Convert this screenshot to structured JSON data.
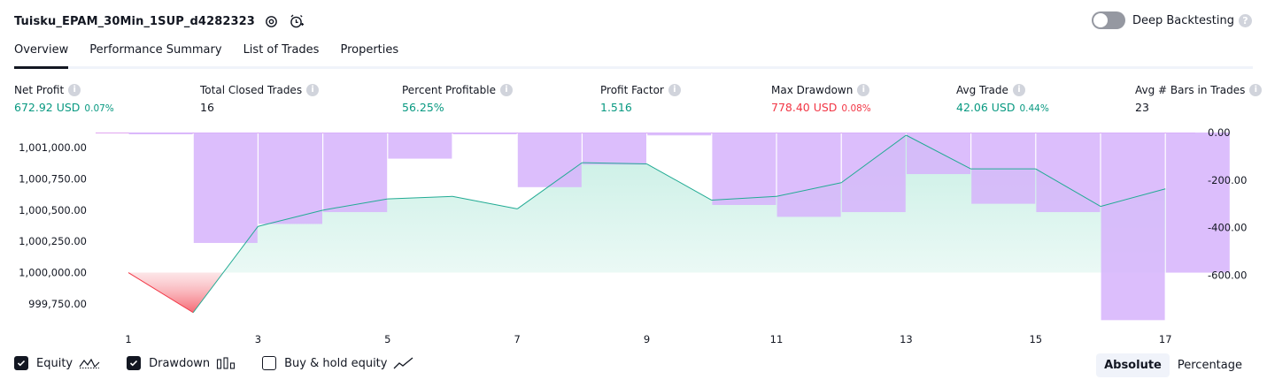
{
  "header": {
    "title": "Tuisku_EPAM_30Min_1SUP_d4282323",
    "deep_backtesting_label": "Deep Backtesting"
  },
  "tabs": [
    "Overview",
    "Performance Summary",
    "List of Trades",
    "Properties"
  ],
  "stats": {
    "net_profit": {
      "label": "Net Profit",
      "value": "672.92 USD",
      "pct": "0.07%"
    },
    "total_closed_trades": {
      "label": "Total Closed Trades",
      "value": "16"
    },
    "percent_profitable": {
      "label": "Percent Profitable",
      "value": "56.25%"
    },
    "profit_factor": {
      "label": "Profit Factor",
      "value": "1.516"
    },
    "max_drawdown": {
      "label": "Max Drawdown",
      "value": "778.40 USD",
      "pct": "0.08%"
    },
    "avg_trade": {
      "label": "Avg Trade",
      "value": "42.06 USD",
      "pct": "0.44%"
    },
    "avg_bars": {
      "label": "Avg # Bars in Trades",
      "value": "23"
    }
  },
  "colors": {
    "profit": "#089981",
    "loss": "#f23645",
    "drawdown_bar": "#d6b3fb",
    "equity_line": "#22ab94",
    "equity_fill": "#c5eee3"
  },
  "chart_data": {
    "type": "line",
    "x": [
      1,
      2,
      3,
      4,
      5,
      6,
      7,
      8,
      9,
      10,
      11,
      12,
      13,
      14,
      15,
      16,
      17
    ],
    "x_tick_labels": [
      "1",
      "3",
      "5",
      "7",
      "9",
      "11",
      "13",
      "15",
      "17"
    ],
    "left_axis": {
      "ticks": [
        "1,001,000.00",
        "1,000,750.00",
        "1,000,500.00",
        "1,000,250.00",
        "1,000,000.00",
        "999,750.00"
      ],
      "range": [
        999650,
        1001100
      ]
    },
    "right_axis": {
      "ticks": [
        "0.00",
        "-200.00",
        "-400.00",
        "-600.00"
      ],
      "range": [
        -800,
        0
      ]
    },
    "series": [
      {
        "name": "Equity",
        "axis": "left",
        "values": [
          1000000,
          999680,
          1000370,
          1000500,
          1000590,
          1000610,
          1000510,
          1000880,
          1000870,
          1000580,
          1000610,
          1000720,
          1001100,
          1000830,
          1000830,
          1000530,
          1000670
        ]
      },
      {
        "name": "Drawdown",
        "axis": "right",
        "type": "bar",
        "values": [
          -3,
          -465,
          -385,
          -335,
          -110,
          -3,
          -230,
          -135,
          -12,
          -305,
          -355,
          -335,
          -175,
          -300,
          -335,
          -790,
          -590
        ]
      }
    ]
  },
  "legend": {
    "equity": {
      "label": "Equity",
      "checked": true
    },
    "drawdown": {
      "label": "Drawdown",
      "checked": true
    },
    "buy_hold": {
      "label": "Buy & hold equity",
      "checked": false
    }
  },
  "mode": {
    "absolute": "Absolute",
    "percentage": "Percentage"
  }
}
